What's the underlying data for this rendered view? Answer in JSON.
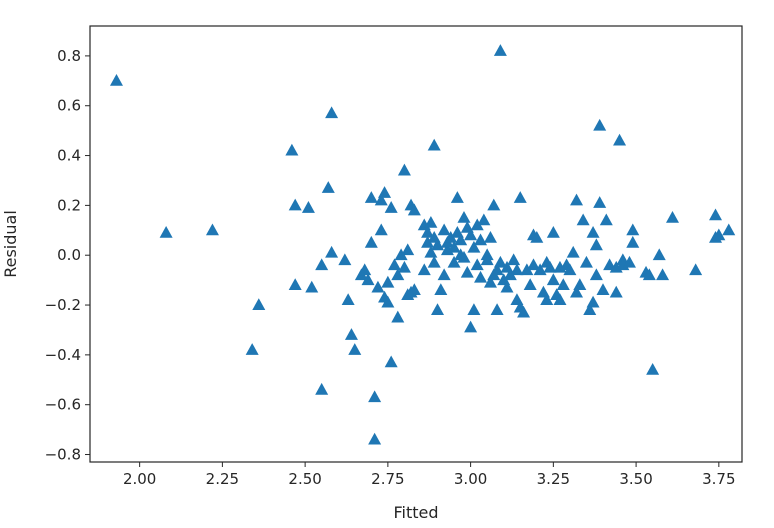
{
  "chart_data": {
    "type": "scatter",
    "title": "",
    "xlabel": "Fitted",
    "ylabel": "Residual",
    "xlim": [
      1.85,
      3.82
    ],
    "ylim": [
      -0.83,
      0.92
    ],
    "xticks": [
      "2.00",
      "2.25",
      "2.50",
      "2.75",
      "3.00",
      "3.25",
      "3.50",
      "3.75"
    ],
    "yticks": [
      "0.8",
      "0.6",
      "0.4",
      "0.2",
      "0.0",
      "−0.2",
      "−0.4",
      "−0.6",
      "−0.8"
    ],
    "grid": false,
    "marker": "triangle",
    "color": "#1f77b4",
    "points": [
      [
        1.93,
        0.7
      ],
      [
        3.09,
        0.82
      ],
      [
        2.08,
        0.09
      ],
      [
        2.22,
        0.1
      ],
      [
        2.34,
        -0.38
      ],
      [
        2.36,
        -0.2
      ],
      [
        2.46,
        0.42
      ],
      [
        2.47,
        0.2
      ],
      [
        2.47,
        -0.12
      ],
      [
        2.51,
        0.19
      ],
      [
        2.52,
        -0.13
      ],
      [
        2.55,
        -0.04
      ],
      [
        2.55,
        -0.54
      ],
      [
        2.57,
        0.27
      ],
      [
        2.58,
        0.57
      ],
      [
        2.58,
        0.01
      ],
      [
        2.62,
        -0.02
      ],
      [
        2.63,
        -0.18
      ],
      [
        2.64,
        -0.32
      ],
      [
        2.65,
        -0.38
      ],
      [
        2.67,
        -0.08
      ],
      [
        2.68,
        -0.06
      ],
      [
        2.69,
        -0.1
      ],
      [
        2.7,
        0.05
      ],
      [
        2.7,
        0.23
      ],
      [
        2.71,
        -0.57
      ],
      [
        2.71,
        -0.74
      ],
      [
        2.72,
        -0.13
      ],
      [
        2.73,
        0.22
      ],
      [
        2.73,
        0.1
      ],
      [
        2.74,
        0.25
      ],
      [
        2.74,
        -0.17
      ],
      [
        2.75,
        -0.11
      ],
      [
        2.75,
        -0.19
      ],
      [
        2.76,
        0.19
      ],
      [
        2.76,
        -0.43
      ],
      [
        2.77,
        -0.04
      ],
      [
        2.78,
        -0.08
      ],
      [
        2.78,
        -0.25
      ],
      [
        2.79,
        0.0
      ],
      [
        2.8,
        0.34
      ],
      [
        2.8,
        -0.05
      ],
      [
        2.81,
        -0.16
      ],
      [
        2.81,
        0.02
      ],
      [
        2.82,
        0.2
      ],
      [
        2.82,
        -0.15
      ],
      [
        2.83,
        0.18
      ],
      [
        2.83,
        -0.14
      ],
      [
        2.86,
        0.12
      ],
      [
        2.86,
        -0.06
      ],
      [
        2.87,
        0.09
      ],
      [
        2.87,
        0.05
      ],
      [
        2.88,
        0.13
      ],
      [
        2.88,
        0.01
      ],
      [
        2.89,
        0.44
      ],
      [
        2.89,
        -0.03
      ],
      [
        2.89,
        0.07
      ],
      [
        2.9,
        -0.22
      ],
      [
        2.9,
        0.04
      ],
      [
        2.91,
        -0.14
      ],
      [
        2.92,
        0.1
      ],
      [
        2.92,
        -0.08
      ],
      [
        2.93,
        0.02
      ],
      [
        2.93,
        0.05
      ],
      [
        2.94,
        0.07
      ],
      [
        2.95,
        0.03
      ],
      [
        2.95,
        -0.03
      ],
      [
        2.96,
        0.23
      ],
      [
        2.96,
        0.09
      ],
      [
        2.97,
        0.0
      ],
      [
        2.97,
        0.06
      ],
      [
        2.98,
        -0.01
      ],
      [
        2.98,
        0.15
      ],
      [
        2.99,
        0.11
      ],
      [
        2.99,
        -0.07
      ],
      [
        3.0,
        0.08
      ],
      [
        3.0,
        -0.29
      ],
      [
        3.01,
        -0.22
      ],
      [
        3.01,
        0.03
      ],
      [
        3.02,
        0.12
      ],
      [
        3.02,
        -0.04
      ],
      [
        3.03,
        0.06
      ],
      [
        3.03,
        -0.09
      ],
      [
        3.04,
        0.14
      ],
      [
        3.05,
        0.0
      ],
      [
        3.05,
        -0.02
      ],
      [
        3.06,
        0.07
      ],
      [
        3.06,
        -0.11
      ],
      [
        3.07,
        0.2
      ],
      [
        3.07,
        -0.08
      ],
      [
        3.08,
        -0.06
      ],
      [
        3.08,
        -0.22
      ],
      [
        3.09,
        -0.03
      ],
      [
        3.1,
        -0.1
      ],
      [
        3.11,
        -0.05
      ],
      [
        3.11,
        -0.13
      ],
      [
        3.12,
        -0.08
      ],
      [
        3.13,
        -0.02
      ],
      [
        3.14,
        -0.18
      ],
      [
        3.14,
        -0.06
      ],
      [
        3.15,
        0.23
      ],
      [
        3.15,
        -0.21
      ],
      [
        3.16,
        -0.23
      ],
      [
        3.17,
        -0.06
      ],
      [
        3.18,
        -0.12
      ],
      [
        3.19,
        0.08
      ],
      [
        3.19,
        -0.04
      ],
      [
        3.2,
        0.07
      ],
      [
        3.21,
        -0.06
      ],
      [
        3.22,
        -0.15
      ],
      [
        3.23,
        -0.03
      ],
      [
        3.23,
        -0.18
      ],
      [
        3.24,
        -0.05
      ],
      [
        3.25,
        -0.1
      ],
      [
        3.25,
        0.09
      ],
      [
        3.26,
        -0.16
      ],
      [
        3.27,
        -0.05
      ],
      [
        3.27,
        -0.18
      ],
      [
        3.28,
        -0.12
      ],
      [
        3.29,
        -0.04
      ],
      [
        3.3,
        -0.06
      ],
      [
        3.31,
        0.01
      ],
      [
        3.32,
        -0.15
      ],
      [
        3.32,
        0.22
      ],
      [
        3.33,
        -0.12
      ],
      [
        3.34,
        0.14
      ],
      [
        3.35,
        -0.03
      ],
      [
        3.36,
        -0.22
      ],
      [
        3.37,
        -0.19
      ],
      [
        3.37,
        0.09
      ],
      [
        3.38,
        -0.08
      ],
      [
        3.38,
        0.04
      ],
      [
        3.39,
        0.52
      ],
      [
        3.39,
        0.21
      ],
      [
        3.4,
        -0.14
      ],
      [
        3.41,
        0.14
      ],
      [
        3.42,
        -0.04
      ],
      [
        3.44,
        -0.15
      ],
      [
        3.44,
        -0.05
      ],
      [
        3.45,
        0.46
      ],
      [
        3.46,
        -0.02
      ],
      [
        3.46,
        -0.04
      ],
      [
        3.48,
        -0.03
      ],
      [
        3.49,
        0.1
      ],
      [
        3.49,
        0.05
      ],
      [
        3.53,
        -0.07
      ],
      [
        3.54,
        -0.08
      ],
      [
        3.55,
        -0.46
      ],
      [
        3.57,
        0.0
      ],
      [
        3.58,
        -0.08
      ],
      [
        3.61,
        0.15
      ],
      [
        3.68,
        -0.06
      ],
      [
        3.74,
        0.16
      ],
      [
        3.74,
        0.07
      ],
      [
        3.75,
        0.08
      ],
      [
        3.78,
        0.1
      ]
    ]
  }
}
